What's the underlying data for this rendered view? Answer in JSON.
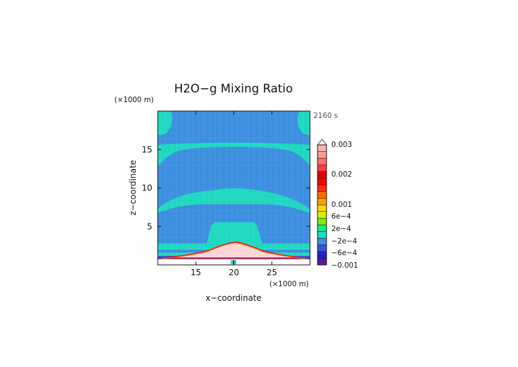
{
  "chart_data": {
    "type": "heatmap",
    "title": "H2O−g Mixing Ratio",
    "time_label": "2160 s",
    "xlabel": "x−coordinate",
    "ylabel": "z−coordinate",
    "x_unit": "(×1000 m)",
    "y_unit": "(×1000 m)",
    "xlim": [
      10,
      30
    ],
    "ylim": [
      0,
      20
    ],
    "x_ticks": [
      15,
      20,
      25
    ],
    "y_ticks": [
      5,
      10,
      15
    ],
    "x_tick_labels": [
      "15",
      "20",
      "25"
    ],
    "y_tick_labels": [
      "5",
      "10",
      "15"
    ],
    "colorbar": {
      "labels": [
        "0.003",
        "0.002",
        "0.001",
        "6e−4",
        "2e−4",
        "−2e−4",
        "−6e−4",
        "−0.001"
      ],
      "colors": [
        "#5a1a9e",
        "#2222c8",
        "#3b54d8",
        "#3d8fe0",
        "#1fd8c0",
        "#10ee88",
        "#7cf000",
        "#d8f000",
        "#ffd800",
        "#ffa000",
        "#ff6a00",
        "#ff3000",
        "#ff0000",
        "#e80000",
        "#ff4040",
        "#ff7070",
        "#ff9a9a",
        "#ffb0b0"
      ],
      "open_top": true
    },
    "field": {
      "background_color": "#3d8fe0",
      "positive_color": "#1fd8c0",
      "core_color": "#ffd4d4",
      "core_edge_colors": [
        "#ff6a00",
        "#ff0000"
      ],
      "ground_color": "#ffffff"
    }
  }
}
